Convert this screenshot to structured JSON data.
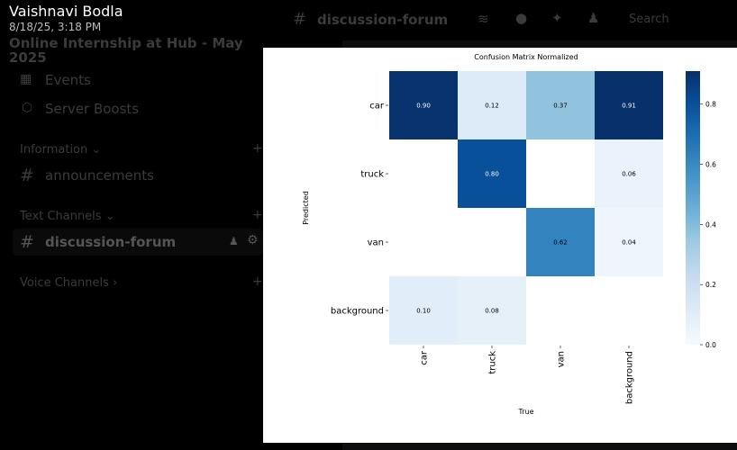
{
  "viewer": {
    "author": "Vaishnavi Bodla",
    "timestamp": "8/18/25, 3:18 PM"
  },
  "server": {
    "name": "Online Internship at Hub - May 2025",
    "channel": "discussion-forum",
    "search_placeholder": "Search"
  },
  "sidebar": {
    "items": [
      {
        "label": "Events",
        "icon": "calendar-icon"
      },
      {
        "label": "Server Boosts",
        "icon": "boost-icon"
      }
    ],
    "categories": [
      {
        "label": "Information",
        "channels": [
          "announcements"
        ]
      },
      {
        "label": "Text Channels",
        "channels": [
          "discussion-forum"
        ]
      },
      {
        "label": "Voice Channels",
        "channels": []
      }
    ]
  },
  "chart_data": {
    "type": "heatmap",
    "title": "Confusion Matrix Normalized",
    "xlabel": "True",
    "ylabel": "Predicted",
    "x_categories": [
      "car",
      "truck",
      "van",
      "background"
    ],
    "y_categories": [
      "car",
      "truck",
      "van",
      "background"
    ],
    "values": [
      [
        0.9,
        0.12,
        0.37,
        0.91
      ],
      [
        null,
        0.8,
        null,
        0.06
      ],
      [
        null,
        null,
        0.62,
        0.04
      ],
      [
        0.1,
        0.08,
        null,
        null
      ]
    ],
    "colormap": "Blues",
    "colorbar": {
      "min": 0.0,
      "max": 0.91,
      "ticks": [
        "0.0",
        "0.2",
        "0.4",
        "0.6",
        "0.8"
      ]
    }
  }
}
